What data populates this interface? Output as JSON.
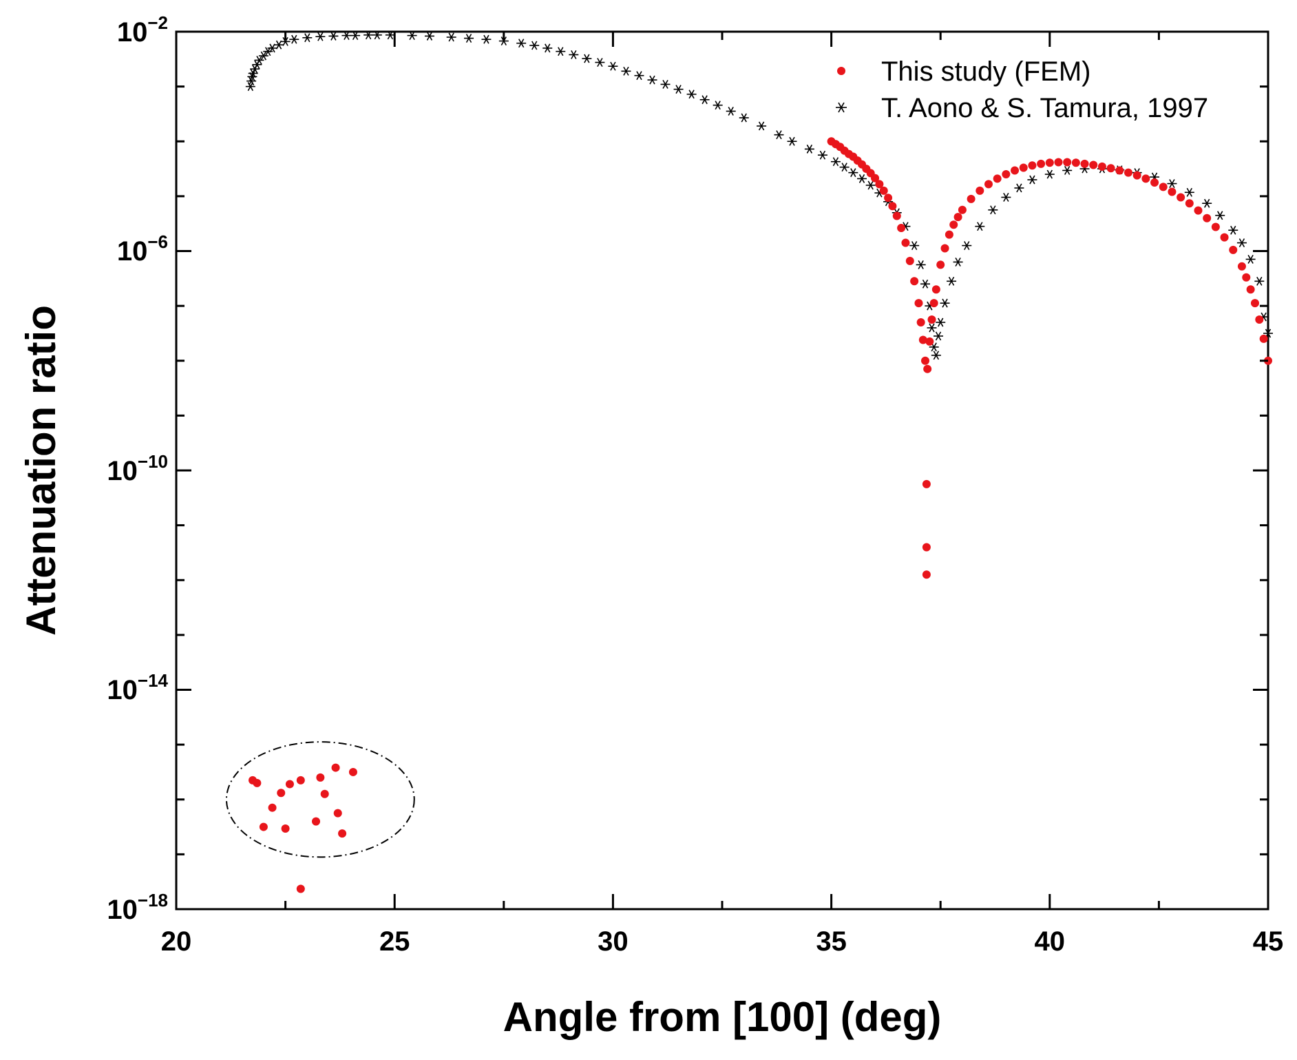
{
  "chart_data": {
    "type": "scatter",
    "title": "",
    "xlabel": "Angle from [100] (deg)",
    "ylabel": "Attenuation ratio",
    "xlim": [
      20,
      45
    ],
    "ylim_log10": [
      -18,
      -2
    ],
    "yscale": "log",
    "x_ticks": [
      20,
      25,
      30,
      35,
      40,
      45
    ],
    "x_tick_labels": [
      "20",
      "25",
      "30",
      "35",
      "40",
      "45"
    ],
    "y_ticks_log10": [
      -2,
      -6,
      -10,
      -14,
      -18
    ],
    "y_tick_labels": [
      {
        "base": "10",
        "exp": "−2"
      },
      {
        "base": "10",
        "exp": "−6"
      },
      {
        "base": "10",
        "exp": "−10"
      },
      {
        "base": "10",
        "exp": "−14"
      },
      {
        "base": "10",
        "exp": "−18"
      }
    ],
    "legend_position": "top-right",
    "colors": {
      "fem": "#e8151b",
      "ref": "#000000",
      "ellipse": "#000000"
    },
    "annotation": {
      "type": "dash-dot ellipse",
      "center": [
        23.3,
        -16.0
      ],
      "semi_axes": [
        2.15,
        1.05
      ]
    },
    "series": [
      {
        "name": "This study (FEM)",
        "marker": "filled-circle",
        "color": "#e8151b",
        "x": [
          35.0,
          35.1,
          35.2,
          35.3,
          35.4,
          35.5,
          35.6,
          35.7,
          35.8,
          35.9,
          36.0,
          36.1,
          36.2,
          36.3,
          36.4,
          36.5,
          36.6,
          36.7,
          36.8,
          36.9,
          37.0,
          37.05,
          37.1,
          37.15,
          37.2,
          37.25,
          37.3,
          37.35,
          37.4,
          37.5,
          37.6,
          37.7,
          37.8,
          37.9,
          38.0,
          38.2,
          38.4,
          38.6,
          38.8,
          39.0,
          39.2,
          39.4,
          39.6,
          39.8,
          40.0,
          40.2,
          40.4,
          40.6,
          40.8,
          41.0,
          41.2,
          41.4,
          41.6,
          41.8,
          42.0,
          42.2,
          42.4,
          42.6,
          42.8,
          43.0,
          43.2,
          43.4,
          43.6,
          43.8,
          44.0,
          44.2,
          44.4,
          44.5,
          44.6,
          44.7,
          44.8,
          44.9,
          45.0,
          37.18,
          37.18,
          37.18,
          21.75,
          21.85,
          22.0,
          22.2,
          22.4,
          22.5,
          22.6,
          22.85,
          23.2,
          23.3,
          23.4,
          23.65,
          23.7,
          23.8,
          24.05,
          22.85
        ],
        "log10_y": [
          -4.0,
          -4.05,
          -4.1,
          -4.17,
          -4.23,
          -4.28,
          -4.35,
          -4.42,
          -4.5,
          -4.58,
          -4.67,
          -4.78,
          -4.9,
          -5.03,
          -5.18,
          -5.36,
          -5.58,
          -5.85,
          -6.18,
          -6.55,
          -6.95,
          -7.3,
          -7.62,
          -8.0,
          -8.15,
          -7.65,
          -7.25,
          -6.95,
          -6.7,
          -6.25,
          -5.95,
          -5.7,
          -5.52,
          -5.38,
          -5.25,
          -5.05,
          -4.9,
          -4.78,
          -4.68,
          -4.6,
          -4.53,
          -4.48,
          -4.44,
          -4.41,
          -4.39,
          -4.38,
          -4.38,
          -4.39,
          -4.41,
          -4.43,
          -4.46,
          -4.49,
          -4.53,
          -4.57,
          -4.62,
          -4.68,
          -4.75,
          -4.83,
          -4.92,
          -5.02,
          -5.13,
          -5.26,
          -5.4,
          -5.56,
          -5.75,
          -5.98,
          -6.28,
          -6.48,
          -6.7,
          -6.95,
          -7.25,
          -7.6,
          -8.0,
          -10.25,
          -11.4,
          -11.9,
          -15.65,
          -15.7,
          -16.5,
          -16.15,
          -15.88,
          -16.53,
          -15.72,
          -15.65,
          -16.4,
          -15.6,
          -15.9,
          -15.42,
          -16.25,
          -16.62,
          -15.5,
          -17.63
        ]
      },
      {
        "name": "T. Aono & S. Tamura, 1997",
        "marker": "asterisk",
        "color": "#000000",
        "x": [
          21.7,
          21.72,
          21.74,
          21.76,
          21.8,
          21.85,
          21.9,
          22.0,
          22.1,
          22.2,
          22.35,
          22.5,
          22.7,
          23.0,
          23.3,
          23.6,
          23.9,
          24.1,
          24.4,
          24.6,
          24.9,
          25.4,
          25.8,
          26.3,
          26.7,
          27.1,
          27.5,
          27.9,
          28.2,
          28.5,
          28.8,
          29.1,
          29.4,
          29.7,
          30.0,
          30.3,
          30.6,
          30.9,
          31.2,
          31.5,
          31.8,
          32.1,
          32.4,
          32.7,
          33.0,
          33.4,
          33.8,
          34.1,
          34.5,
          34.8,
          35.1,
          35.3,
          35.5,
          35.7,
          35.9,
          36.1,
          36.3,
          36.5,
          36.7,
          36.9,
          37.05,
          37.15,
          37.25,
          37.3,
          37.35,
          37.4,
          37.45,
          37.5,
          37.6,
          37.75,
          37.9,
          38.1,
          38.4,
          38.7,
          39.0,
          39.3,
          39.6,
          40.0,
          40.4,
          40.8,
          41.2,
          41.6,
          42.0,
          42.4,
          42.8,
          43.2,
          43.6,
          43.9,
          44.2,
          44.4,
          44.6,
          44.8,
          44.9,
          45.0
        ],
        "log10_y": [
          -3.0,
          -2.9,
          -2.82,
          -2.76,
          -2.68,
          -2.6,
          -2.52,
          -2.44,
          -2.36,
          -2.3,
          -2.24,
          -2.18,
          -2.14,
          -2.11,
          -2.09,
          -2.08,
          -2.07,
          -2.07,
          -2.06,
          -2.06,
          -2.06,
          -2.07,
          -2.08,
          -2.1,
          -2.12,
          -2.14,
          -2.17,
          -2.21,
          -2.25,
          -2.3,
          -2.36,
          -2.42,
          -2.49,
          -2.56,
          -2.63,
          -2.72,
          -2.8,
          -2.88,
          -2.96,
          -3.05,
          -3.14,
          -3.24,
          -3.34,
          -3.45,
          -3.57,
          -3.72,
          -3.88,
          -4.0,
          -4.14,
          -4.25,
          -4.37,
          -4.47,
          -4.57,
          -4.68,
          -4.8,
          -4.94,
          -5.1,
          -5.3,
          -5.55,
          -5.9,
          -6.25,
          -6.6,
          -7.0,
          -7.4,
          -7.75,
          -7.9,
          -7.55,
          -7.3,
          -6.95,
          -6.55,
          -6.2,
          -5.9,
          -5.55,
          -5.25,
          -5.02,
          -4.85,
          -4.7,
          -4.6,
          -4.53,
          -4.5,
          -4.5,
          -4.52,
          -4.57,
          -4.65,
          -4.77,
          -4.93,
          -5.13,
          -5.35,
          -5.62,
          -5.85,
          -6.15,
          -6.55,
          -7.2,
          -7.5
        ]
      }
    ]
  }
}
